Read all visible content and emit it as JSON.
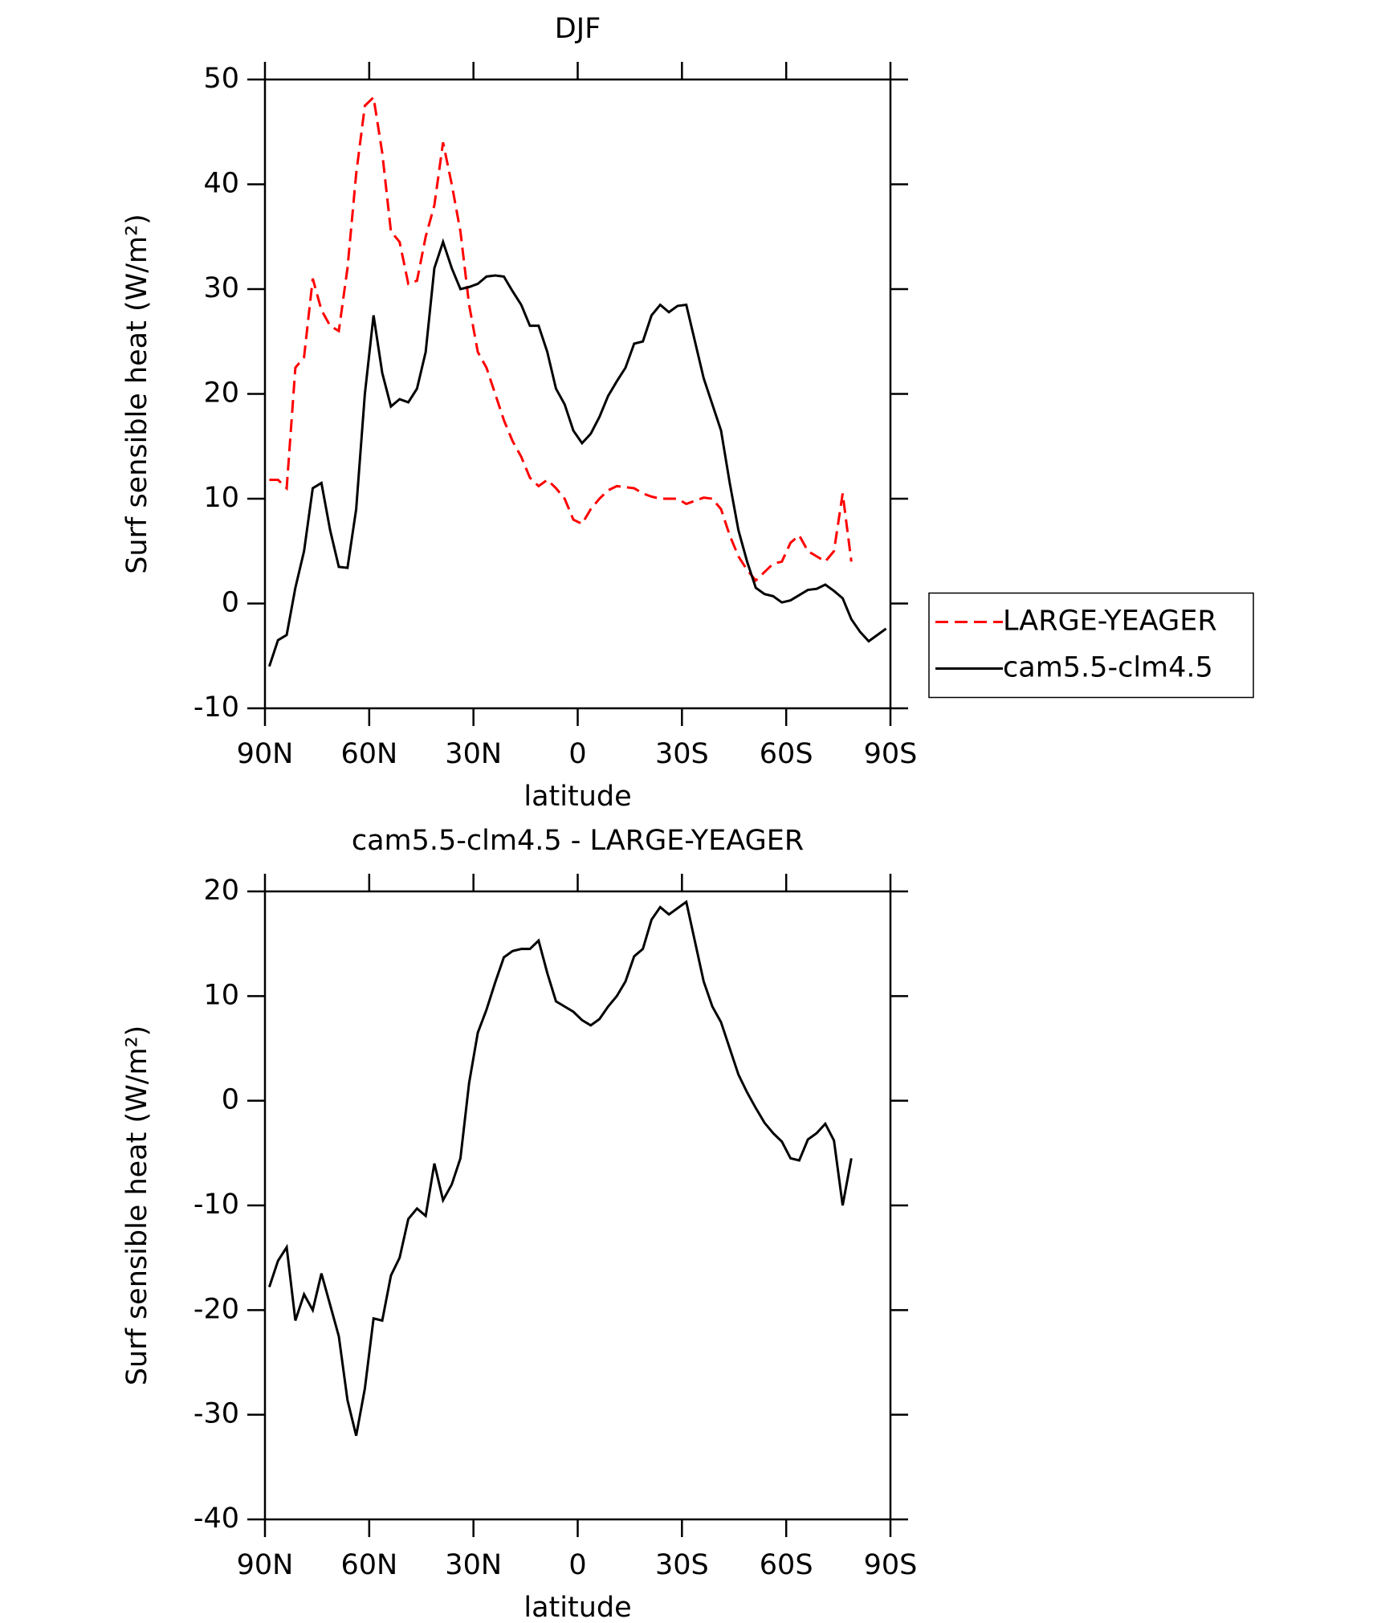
{
  "chart_data": [
    {
      "type": "line",
      "title": "DJF",
      "xlabel": "latitude",
      "ylabel": "Surf sensible heat (W/m²)",
      "xlim": [
        90,
        -90
      ],
      "ylim": [
        -10,
        50
      ],
      "xticks": [
        {
          "value": 90,
          "label": "90N"
        },
        {
          "value": 60,
          "label": "60N"
        },
        {
          "value": 30,
          "label": "30N"
        },
        0,
        {
          "value": -30,
          "label": "30S"
        },
        {
          "value": -60,
          "label": "60S"
        },
        {
          "value": -90,
          "label": "90S"
        }
      ],
      "yticks": [
        -10,
        0,
        10,
        20,
        30,
        40,
        50
      ],
      "legend": "right",
      "x": [
        88.75,
        86.25,
        83.75,
        81.25,
        78.75,
        76.25,
        73.75,
        71.25,
        68.75,
        66.25,
        63.75,
        61.25,
        58.75,
        56.25,
        53.75,
        51.25,
        48.75,
        46.25,
        43.75,
        41.25,
        38.75,
        36.25,
        33.75,
        31.25,
        28.75,
        26.25,
        23.75,
        21.25,
        18.75,
        16.25,
        13.75,
        11.25,
        8.75,
        6.25,
        3.75,
        1.25,
        -1.25,
        -3.75,
        -6.25,
        -8.75,
        -11.25,
        -13.75,
        -16.25,
        -18.75,
        -21.25,
        -23.75,
        -26.25,
        -28.75,
        -31.25,
        -33.75,
        -36.25,
        -38.75,
        -41.25,
        -43.75,
        -46.25,
        -48.75,
        -51.25,
        -53.75,
        -56.25,
        -58.75,
        -61.25,
        -63.75,
        -66.25,
        -68.75,
        -71.25,
        -73.75,
        -76.25,
        -78.75,
        -81.25,
        -83.75,
        -86.25,
        -88.75
      ],
      "series": [
        {
          "name": "LARGE-YEAGER",
          "color": "#ff0000",
          "linestyle": "dashed",
          "values": [
            11.8,
            11.8,
            11,
            22.5,
            23.5,
            31,
            28,
            26.5,
            26,
            32,
            41,
            47.5,
            48.3,
            43,
            35.5,
            34.5,
            30.5,
            30.8,
            35,
            38,
            44,
            40,
            35.5,
            28.5,
            24,
            22.5,
            20,
            17.5,
            15.5,
            14,
            12,
            11.2,
            11.8,
            11,
            10,
            8,
            7.6,
            9,
            10,
            10.8,
            11.2,
            11.1,
            11,
            10.5,
            10.2,
            10,
            10,
            10,
            9.5,
            9.8,
            10.1,
            10,
            9,
            6.5,
            4.5,
            3.2,
            2.2,
            3,
            3.8,
            4,
            5.8,
            6.5,
            5,
            4.5,
            4,
            5,
            10.5,
            4,
            null,
            null,
            null,
            null
          ]
        },
        {
          "name": "cam5.5-clm4.5",
          "color": "#000000",
          "linestyle": "solid",
          "values": [
            -6,
            -3.5,
            -3,
            1.5,
            5,
            11,
            11.5,
            7,
            3.5,
            3.4,
            9,
            20,
            27.5,
            22,
            18.8,
            19.5,
            19.2,
            20.5,
            24,
            32,
            34.5,
            32,
            30,
            30.2,
            30.5,
            31.2,
            31.3,
            31.2,
            29.8,
            28.5,
            26.5,
            26.5,
            24,
            20.5,
            19,
            16.5,
            15.3,
            16.2,
            17.8,
            19.8,
            21.2,
            22.5,
            24.8,
            25,
            27.5,
            28.5,
            27.8,
            28.4,
            28.5,
            25,
            21.5,
            19,
            16.5,
            11.5,
            7,
            4,
            1.5,
            0.9,
            0.7,
            0.1,
            0.3,
            0.8,
            1.3,
            1.4,
            1.8,
            1.2,
            0.5,
            -1.5,
            -2.7,
            -3.6,
            -3,
            -2.4
          ]
        }
      ]
    },
    {
      "type": "line",
      "title": "cam5.5-clm4.5 - LARGE-YEAGER",
      "xlabel": "latitude",
      "ylabel": "Surf sensible heat (W/m²)",
      "xlim": [
        90,
        -90
      ],
      "ylim": [
        -40,
        20
      ],
      "xticks": [
        {
          "value": 90,
          "label": "90N"
        },
        {
          "value": 60,
          "label": "60N"
        },
        {
          "value": 30,
          "label": "30N"
        },
        0,
        {
          "value": -30,
          "label": "30S"
        },
        {
          "value": -60,
          "label": "60S"
        },
        {
          "value": -90,
          "label": "90S"
        }
      ],
      "yticks": [
        -40,
        -30,
        -20,
        -10,
        0,
        10,
        20
      ],
      "color": "#000000",
      "linestyle": "solid",
      "x": [
        88.75,
        86.25,
        83.75,
        81.25,
        78.75,
        76.25,
        73.75,
        71.25,
        68.75,
        66.25,
        63.75,
        61.25,
        58.75,
        56.25,
        53.75,
        51.25,
        48.75,
        46.25,
        43.75,
        41.25,
        38.75,
        36.25,
        33.75,
        31.25,
        28.75,
        26.25,
        23.75,
        21.25,
        18.75,
        16.25,
        13.75,
        11.25,
        8.75,
        6.25,
        3.75,
        1.25,
        -1.25,
        -3.75,
        -6.25,
        -8.75,
        -11.25,
        -13.75,
        -16.25,
        -18.75,
        -21.25,
        -23.75,
        -26.25,
        -28.75,
        -31.25,
        -33.75,
        -36.25,
        -38.75,
        -41.25,
        -43.75,
        -46.25,
        -48.75,
        -51.25,
        -53.75,
        -56.25,
        -58.75,
        -61.25,
        -63.75,
        -66.25,
        -68.75,
        -71.25,
        -73.75,
        -76.25,
        -78.75,
        -81.25,
        -83.75,
        -86.25,
        -88.75
      ],
      "values": [
        -17.8,
        -15.3,
        -14,
        -21,
        -18.5,
        -20,
        -16.5,
        -19.5,
        -22.5,
        -28.6,
        -32,
        -27.5,
        -20.8,
        -21,
        -16.7,
        -15,
        -11.3,
        -10.3,
        -11,
        -6,
        -9.5,
        -8,
        -5.5,
        1.7,
        6.5,
        8.7,
        11.3,
        13.7,
        14.3,
        14.5,
        14.5,
        15.3,
        12.2,
        9.5,
        9,
        8.5,
        7.7,
        7.2,
        7.8,
        9,
        10,
        11.4,
        13.8,
        14.5,
        17.3,
        18.5,
        17.8,
        18.4,
        19,
        15.2,
        11.4,
        9,
        7.5,
        5,
        2.5,
        0.8,
        -0.7,
        -2.1,
        -3.1,
        -3.9,
        -5.5,
        -5.7,
        -3.7,
        -3.1,
        -2.2,
        -3.8,
        -10,
        -5.5,
        null,
        null,
        null,
        null
      ]
    }
  ]
}
